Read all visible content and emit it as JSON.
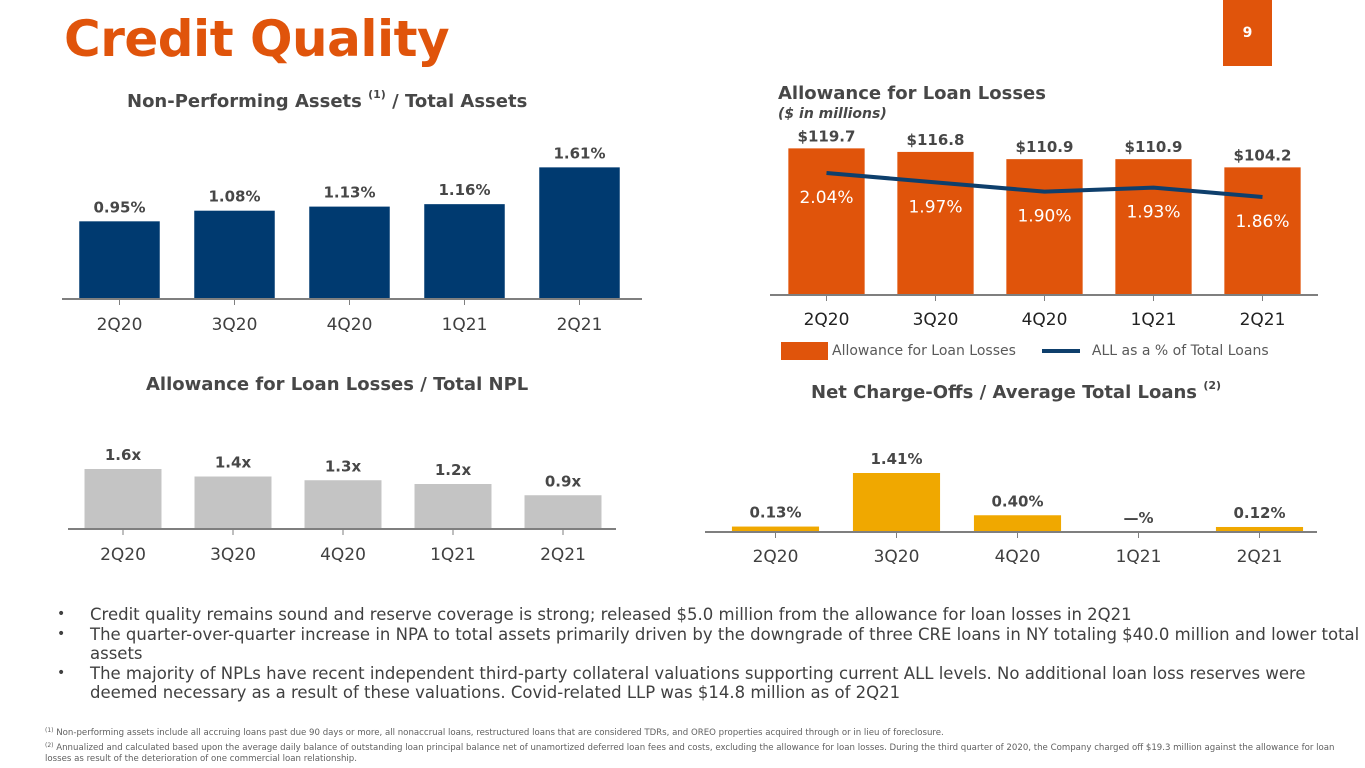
{
  "page": {
    "title": "Credit Quality",
    "page_number": "9",
    "accent_color": "#E0540B"
  },
  "charts": {
    "npa": {
      "title": "Non-Performing Assets",
      "title_sup": "(1)",
      "title_suffix": " / Total Assets"
    },
    "all": {
      "title": "Allowance for Loan Losses",
      "subtitle": "($ in millions)",
      "legend_bar": "Allowance for Loan Losses",
      "legend_line": "ALL as a % of Total Loans"
    },
    "npl": {
      "title": "Allowance for Loan Losses / Total NPL"
    },
    "nco": {
      "title": "Net Charge-Offs / Average Total Loans",
      "title_sup": "(2)"
    }
  },
  "chart_data": [
    {
      "id": "npa",
      "type": "bar",
      "title": "Non-Performing Assets (1) / Total Assets",
      "categories": [
        "2Q20",
        "3Q20",
        "4Q20",
        "1Q21",
        "2Q21"
      ],
      "values": [
        0.95,
        1.08,
        1.13,
        1.16,
        1.61
      ],
      "labels": [
        "0.95%",
        "1.08%",
        "1.13%",
        "1.16%",
        "1.61%"
      ],
      "unit": "%",
      "color": "#003A70",
      "ylim": [
        0,
        1.7
      ],
      "grid": false
    },
    {
      "id": "all",
      "type": "bar",
      "title": "Allowance for Loan Losses",
      "subtitle": "($ in millions)",
      "categories": [
        "2Q20",
        "3Q20",
        "4Q20",
        "1Q21",
        "2Q21"
      ],
      "series": [
        {
          "name": "Allowance for Loan Losses",
          "type": "bar",
          "values": [
            119.7,
            116.8,
            110.9,
            110.9,
            104.2
          ],
          "labels": [
            "$119.7",
            "$116.8",
            "$110.9",
            "$110.9",
            "$104.2"
          ],
          "color": "#E0540B"
        },
        {
          "name": "ALL as a % of Total Loans",
          "type": "line",
          "values": [
            2.04,
            1.97,
            1.9,
            1.93,
            1.86
          ],
          "labels": [
            "2.04%",
            "1.97%",
            "1.90%",
            "1.93%",
            "1.86%"
          ],
          "color": "#0E3F6C"
        }
      ],
      "ylim": [
        0,
        120
      ],
      "legend": "bottom",
      "grid": false
    },
    {
      "id": "npl",
      "type": "bar",
      "title": "Allowance for Loan Losses / Total NPL",
      "categories": [
        "2Q20",
        "3Q20",
        "4Q20",
        "1Q21",
        "2Q21"
      ],
      "values": [
        1.6,
        1.4,
        1.3,
        1.2,
        0.9
      ],
      "labels": [
        "1.6x",
        "1.4x",
        "1.3x",
        "1.2x",
        "0.9x"
      ],
      "color": "#C4C4C4",
      "ylim": [
        0,
        1.6
      ],
      "grid": false
    },
    {
      "id": "nco",
      "type": "bar",
      "title": "Net Charge-Offs / Average Total Loans (2)",
      "categories": [
        "2Q20",
        "3Q20",
        "4Q20",
        "1Q21",
        "2Q21"
      ],
      "values": [
        0.13,
        1.41,
        0.4,
        0,
        0.12
      ],
      "labels": [
        "0.13%",
        "1.41%",
        "0.40%",
        "—%",
        "0.12%"
      ],
      "color": "#F0A800",
      "ylim": [
        0,
        1.41
      ],
      "grid": false
    }
  ],
  "bullets": [
    "Credit quality remains sound and reserve coverage is strong; released $5.0 million from the allowance for loan losses in 2Q21",
    "The quarter-over-quarter increase in NPA to total assets primarily driven by the downgrade of three CRE loans in NY totaling $40.0 million and lower total assets",
    "The majority of NPLs have recent independent third-party collateral valuations supporting current ALL levels. No additional loan loss reserves were deemed necessary as a result of these valuations. Covid-related LLP was $14.8 million as of 2Q21"
  ],
  "bullet_glyph": "•",
  "footnotes": [
    {
      "marker": "(1)",
      "text": "Non-performing assets include all accruing loans past due 90 days or more, all nonaccrual loans, restructured loans that are considered TDRs, and OREO properties acquired through or in lieu of foreclosure."
    },
    {
      "marker": "(2)",
      "text": "Annualized and calculated based upon the average daily balance of outstanding loan principal balance net of unamortized deferred loan fees and costs, excluding the allowance for loan losses. During the third quarter of 2020, the Company charged off $19.3 million against the allowance for loan losses as result of the deterioration of one commercial loan relationship."
    }
  ]
}
